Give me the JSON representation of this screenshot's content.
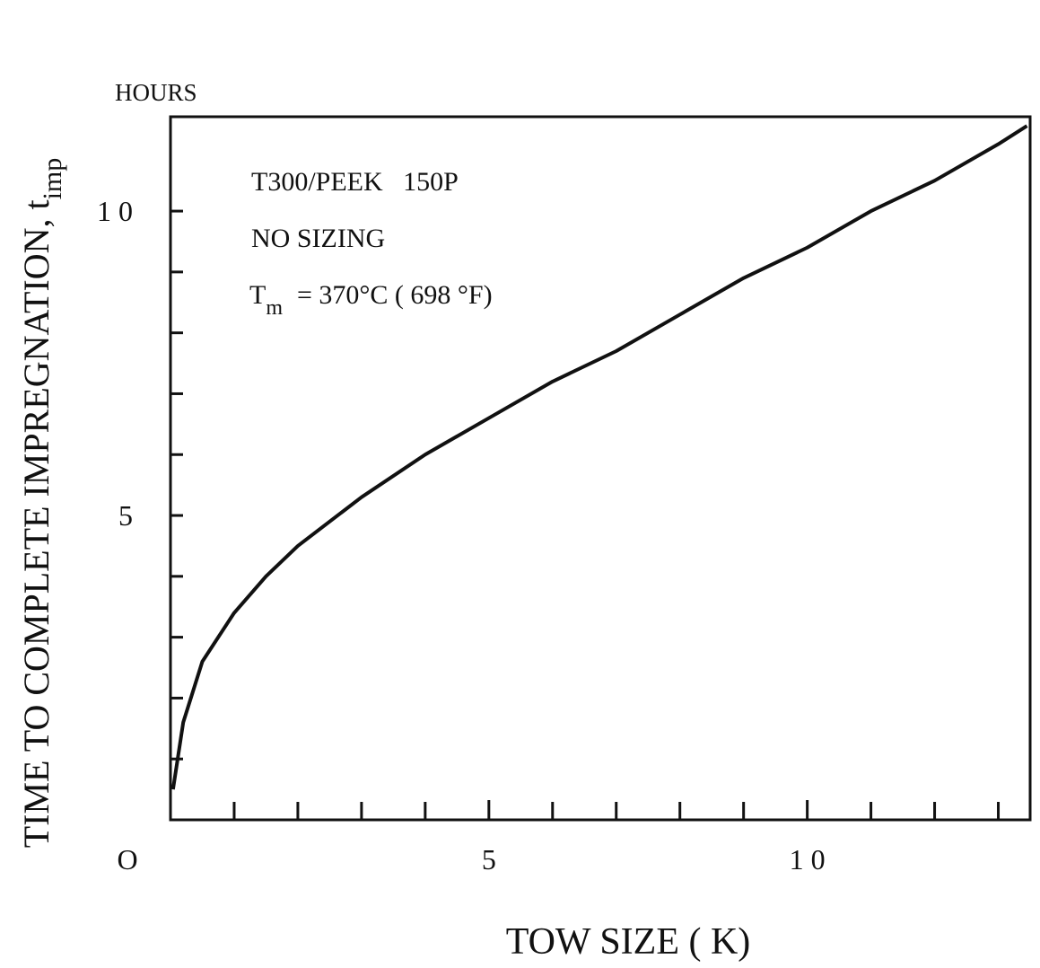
{
  "chart_data": {
    "type": "line",
    "y_unit_label": "HOURS",
    "xlabel": "TOW SIZE ( K)",
    "ylabel": {
      "text": "TIME TO COMPLETE IMPREGNATION, t",
      "sub": "imp"
    },
    "annotations": [
      "T300/PEEK   150P",
      "NO SIZING"
    ],
    "tm_annotation": {
      "text": "T",
      "sub": "m",
      "rest": "= 370°C ( 698 °F)"
    },
    "x": [
      0.04,
      0.2,
      0.5,
      1,
      1.5,
      2,
      3,
      4,
      5,
      6,
      7,
      8,
      9,
      10,
      11,
      12,
      13,
      13.45
    ],
    "series": [
      {
        "color": "#111111",
        "values": [
          0.5,
          1.6,
          2.6,
          3.4,
          4.0,
          4.5,
          5.3,
          6.0,
          6.6,
          7.2,
          7.7,
          8.3,
          8.9,
          9.4,
          10.0,
          10.5,
          11.1,
          11.4
        ]
      }
    ],
    "xlim": [
      0,
      13.5
    ],
    "ylim": [
      0,
      11.55
    ],
    "xticks": [
      {
        "value": 0,
        "label": "O"
      },
      {
        "value": 5,
        "label": "5"
      },
      {
        "value": 10,
        "label": "1 0"
      }
    ],
    "yticks": [
      {
        "value": 5,
        "label": "5"
      },
      {
        "value": 10,
        "label": "1 0"
      }
    ],
    "xminorticks": [
      1,
      2,
      3,
      4,
      6,
      7,
      8,
      9,
      11,
      12,
      13
    ],
    "yminorticks": [
      1,
      2,
      3,
      4,
      6,
      7,
      8,
      9
    ],
    "grid": false
  }
}
